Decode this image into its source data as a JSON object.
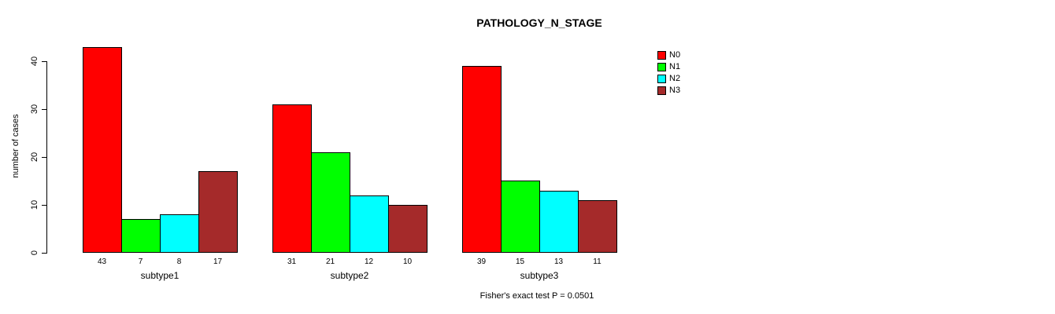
{
  "chart_data": {
    "type": "bar",
    "title": "PATHOLOGY_N_STAGE",
    "ylabel": "number of cases",
    "xlabel": "",
    "categories": [
      "subtype1",
      "subtype2",
      "subtype3"
    ],
    "series": [
      {
        "name": "N0",
        "color": "#ff0000",
        "values": [
          43,
          31,
          39
        ]
      },
      {
        "name": "N1",
        "color": "#00ff00",
        "values": [
          7,
          21,
          15
        ]
      },
      {
        "name": "N2",
        "color": "#00ffff",
        "values": [
          8,
          12,
          13
        ]
      },
      {
        "name": "N3",
        "color": "#a52a2a",
        "values": [
          17,
          10,
          11
        ]
      }
    ],
    "yticks": [
      0,
      10,
      20,
      30,
      40
    ],
    "ylim": [
      0,
      43
    ],
    "grid": false,
    "legend_position": "right-top",
    "bar_value_labels_shown": true,
    "annotation": "Fisher's exact test P = 0.0501"
  }
}
